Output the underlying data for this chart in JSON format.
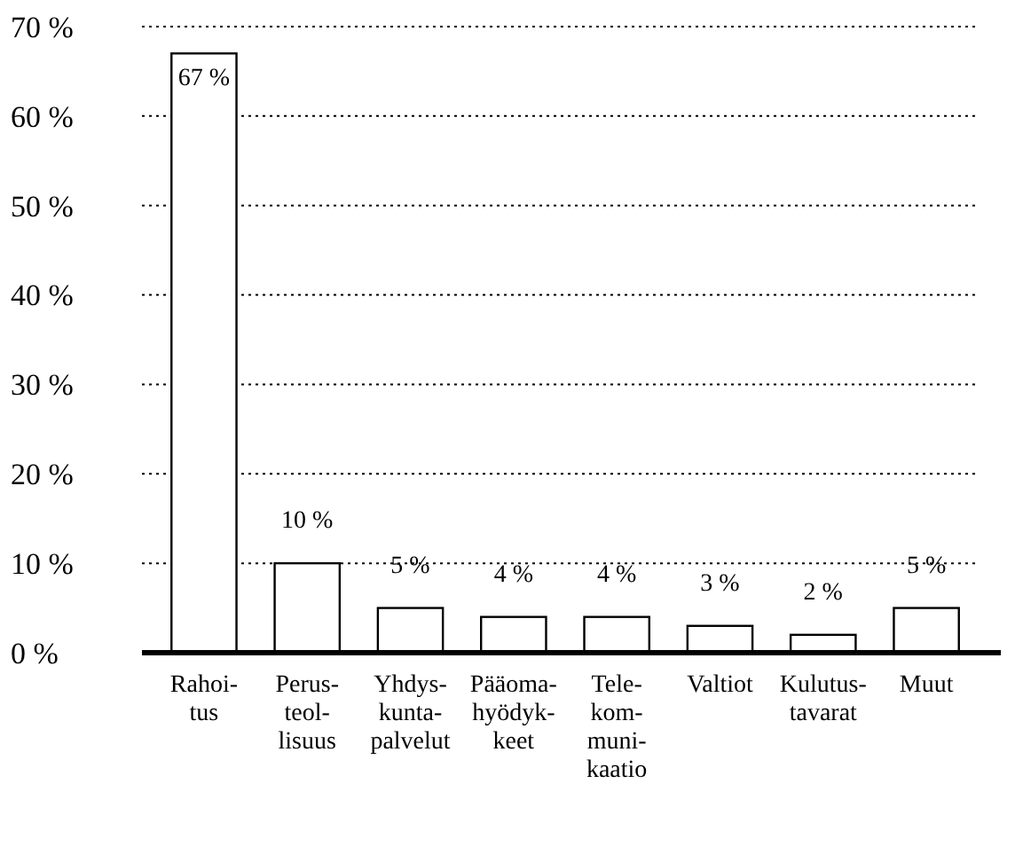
{
  "chart_data": {
    "type": "bar",
    "categories": [
      "Rahoi-\ntus",
      "Perus-\nteol-\nlisuus",
      "Yhdys-\nkunta-\npalvelut",
      "Pääoma-\nhyödyk-\nkeet",
      "Tele-\nkom-\nmuni-\nkaatio",
      "Valtiot",
      "Kulutus-\ntavarat",
      "Muut"
    ],
    "values": [
      67,
      10,
      5,
      4,
      4,
      3,
      2,
      5
    ],
    "value_labels": [
      "67 %",
      "10 %",
      "5 %",
      "4 %",
      "4 %",
      "3 %",
      "2 %",
      "5 %"
    ],
    "color": "#ffffff",
    "ylim": [
      0,
      70
    ],
    "yticks": [
      {
        "value": 0,
        "label": "0 %"
      },
      {
        "value": 10,
        "label": "10 %"
      },
      {
        "value": 20,
        "label": "20 %"
      },
      {
        "value": 30,
        "label": "30 %"
      },
      {
        "value": 40,
        "label": "40 %"
      },
      {
        "value": 50,
        "label": "50 %"
      },
      {
        "value": 60,
        "label": "60 %"
      },
      {
        "value": 70,
        "label": "70 %"
      }
    ],
    "grid": "y"
  }
}
